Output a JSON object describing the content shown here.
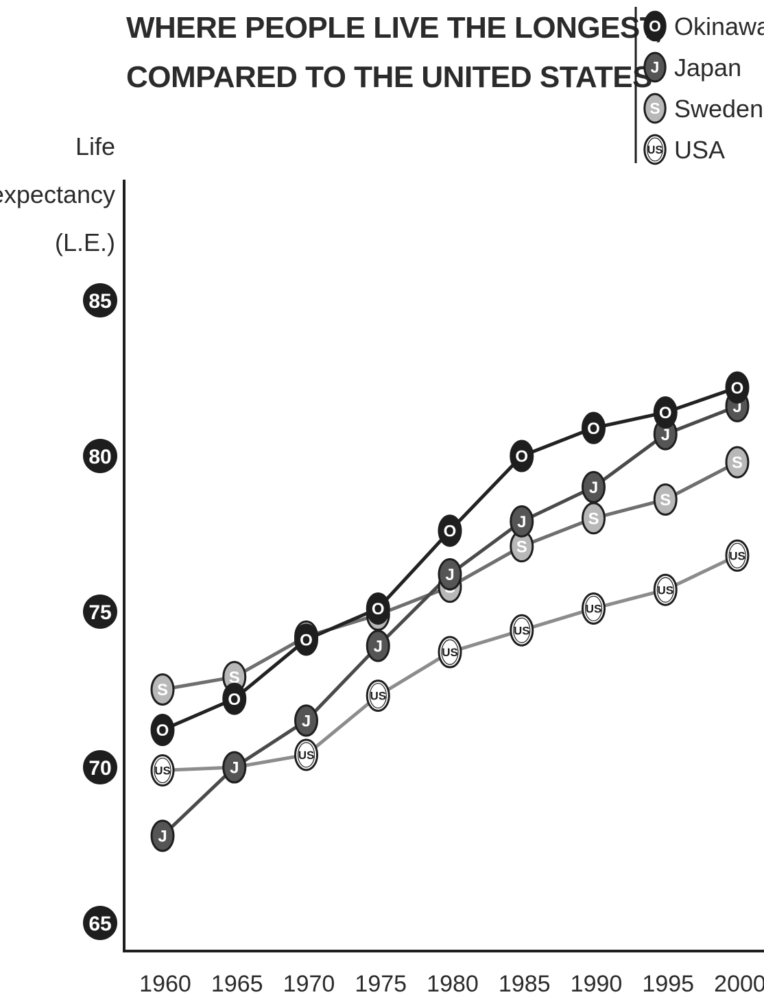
{
  "chart_data": {
    "type": "line",
    "title": [
      "WHERE PEOPLE LIVE THE LONGEST,",
      "COMPARED TO THE UNITED STATES"
    ],
    "ylabel": [
      "Life",
      "expectancy",
      "(L.E.)"
    ],
    "xlabel": "",
    "x": [
      1960,
      1965,
      1970,
      1975,
      1980,
      1985,
      1990,
      1995,
      2000
    ],
    "x_tick_labels": [
      "1960",
      "1965",
      "1970",
      "1975",
      "1980",
      "1985",
      "1990",
      "1995",
      "2000"
    ],
    "y_ticks": [
      65,
      70,
      75,
      80,
      85
    ],
    "y_tick_labels": [
      "65",
      "70",
      "75",
      "80",
      "85"
    ],
    "ylim": [
      65,
      85
    ],
    "grid": false,
    "legend_placement": "top-right",
    "series": [
      {
        "name": "Okinawa",
        "marker_label": "O",
        "fill": "#1e1e1e",
        "text_color": "#ffffff",
        "line_color": "#222222",
        "values": [
          71.2,
          72.2,
          74.1,
          75.1,
          77.6,
          80.0,
          80.9,
          81.4,
          82.2
        ]
      },
      {
        "name": "Japan",
        "marker_label": "J",
        "fill": "#555555",
        "text_color": "#ffffff",
        "line_color": "#4a4a4a",
        "values": [
          67.8,
          70.0,
          71.5,
          73.9,
          76.2,
          77.9,
          79.0,
          80.7,
          81.6
        ]
      },
      {
        "name": "Sweden",
        "marker_label": "S",
        "fill": "#b8b8b8",
        "text_color": "#ffffff",
        "line_color": "#6f6f6f",
        "values": [
          72.5,
          72.9,
          74.2,
          74.9,
          75.8,
          77.1,
          78.0,
          78.6,
          79.8
        ]
      },
      {
        "name": "USA",
        "marker_label": "US",
        "fill": "#ffffff",
        "text_color": "#1e1e1e",
        "line_color": "#8c8c8c",
        "values": [
          69.9,
          70.0,
          70.4,
          72.3,
          73.7,
          74.4,
          75.1,
          75.7,
          76.8
        ]
      }
    ]
  }
}
